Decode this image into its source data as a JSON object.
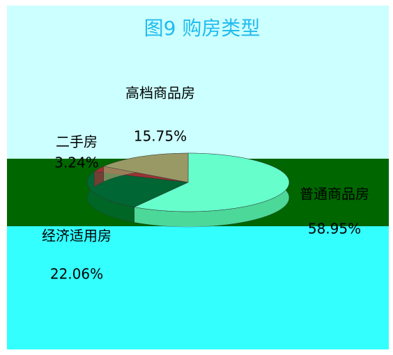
{
  "chart_data": {
    "type": "pie",
    "title": "图9 购房类型",
    "categories": [
      "普通商品房",
      "经济适用房",
      "二手房",
      "高档商品房"
    ],
    "values": [
      58.95,
      22.06,
      3.24,
      15.75
    ],
    "value_labels": [
      "58.95%",
      "22.06%",
      "3.24%",
      "15.75%"
    ],
    "colors": [
      "#66ffcc",
      "#006633",
      "#993333",
      "#999966"
    ]
  }
}
